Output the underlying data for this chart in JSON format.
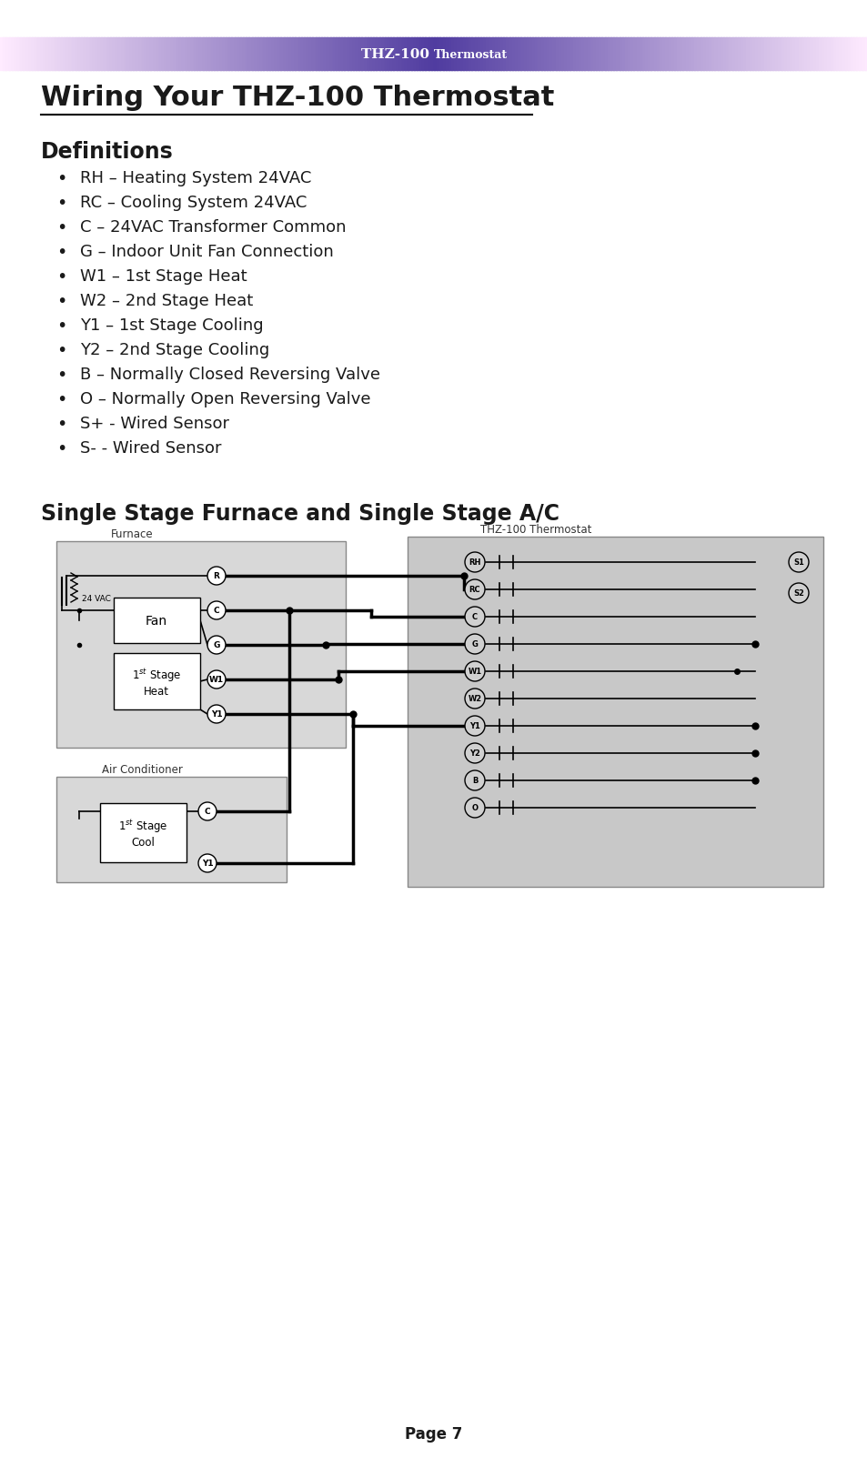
{
  "header_text": "THZ-100 Thermostat",
  "page_bg": "#ffffff",
  "title": "Wiring Your THZ-100 Thermostat",
  "definitions_title": "Definitions",
  "definitions": [
    "RH – Heating System 24VAC",
    "RC – Cooling System 24VAC",
    "C – 24VAC Transformer Common",
    "G – Indoor Unit Fan Connection",
    "W1 – 1st Stage Heat",
    "W2 – 2nd Stage Heat",
    "Y1 – 1st Stage Cooling",
    "Y2 – 2nd Stage Cooling",
    "B – Normally Closed Reversing Valve",
    "O – Normally Open Reversing Valve",
    "S+ - Wired Sensor",
    "S- - Wired Sensor"
  ],
  "diagram_title": "Single Stage Furnace and Single Stage A/C",
  "furnace_label": "Furnace",
  "ac_label": "Air Conditioner",
  "thz_label": "THZ-100 Thermostat",
  "page_number": "Page 7",
  "text_color": "#1a1a1a"
}
